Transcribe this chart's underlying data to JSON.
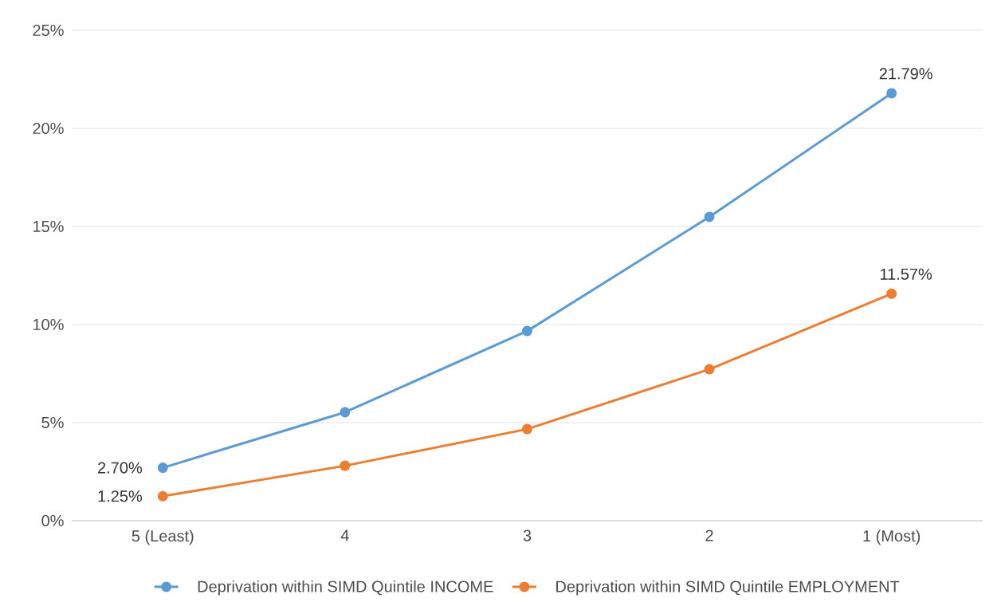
{
  "chart_data": {
    "type": "line",
    "categories": [
      "5 (Least)",
      "4",
      "3",
      "2",
      "1 (Most)"
    ],
    "series": [
      {
        "name": "Deprivation within SIMD Quintile INCOME",
        "color": "#5b9bd5",
        "values": [
          2.7,
          5.53,
          9.67,
          15.49,
          21.79
        ],
        "value_labels": [
          "2.70%",
          null,
          null,
          null,
          "21.79%"
        ]
      },
      {
        "name": "Deprivation within SIMD Quintile EMPLOYMENT",
        "color": "#ed7d31",
        "values": [
          1.25,
          2.8,
          4.67,
          7.72,
          11.57
        ],
        "value_labels": [
          "1.25%",
          null,
          null,
          null,
          "11.57%"
        ]
      }
    ],
    "ylim": [
      0,
      25
    ],
    "yticks": [
      {
        "value": 0,
        "label": "0%"
      },
      {
        "value": 5,
        "label": "5%"
      },
      {
        "value": 10,
        "label": "10%"
      },
      {
        "value": 15,
        "label": "15%"
      },
      {
        "value": 20,
        "label": "20%"
      },
      {
        "value": 25,
        "label": "25%"
      }
    ],
    "grid": "y",
    "legend": "bottom",
    "marker": "circle",
    "line_style": "solid"
  }
}
